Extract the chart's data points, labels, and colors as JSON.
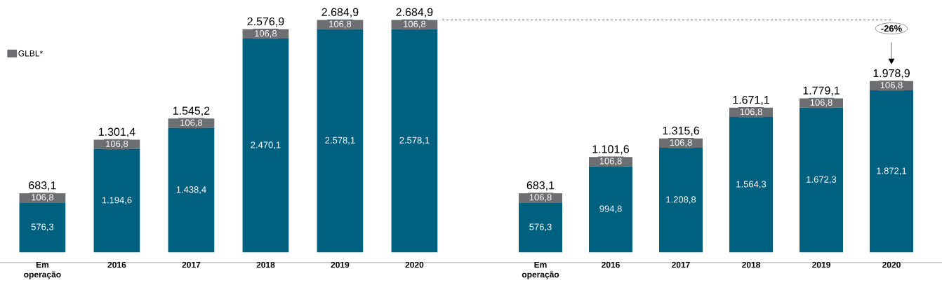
{
  "chart_data": [
    {
      "type": "bar",
      "stacked": true,
      "legend": "top left",
      "categories": [
        "Em operação",
        "2016",
        "2017",
        "2018",
        "2019",
        "2020"
      ],
      "series": [
        {
          "color": "#00607f",
          "values": [
            576.3,
            1194.6,
            1438.4,
            2470.1,
            2578.1,
            2578.1
          ],
          "value_labels": [
            "576,3",
            "1.194,6",
            "1.438,4",
            "2.470,1",
            "2.578,1",
            "2.578,1"
          ]
        },
        {
          "name": "GLBL*",
          "color": "#6d6e71",
          "values": [
            106.8,
            106.8,
            106.8,
            106.8,
            106.8,
            106.8
          ],
          "value_labels": [
            "106,8",
            "106,8",
            "106,8",
            "106,8",
            "106,8",
            "106,8"
          ]
        }
      ],
      "totals": [
        "683,1",
        "1.301,4",
        "1.545,2",
        "2.576,9",
        "2.684,9",
        "2.684,9"
      ]
    },
    {
      "type": "bar",
      "stacked": true,
      "categories": [
        "Em operação",
        "2016",
        "2017",
        "2018",
        "2019",
        "2020"
      ],
      "series": [
        {
          "color": "#00607f",
          "values": [
            576.3,
            994.8,
            1208.8,
            1564.3,
            1672.3,
            1872.1
          ],
          "value_labels": [
            "576,3",
            "994,8",
            "1.208,8",
            "1.564,3",
            "1.672,3",
            "1.872,1"
          ]
        },
        {
          "color": "#6d6e71",
          "values": [
            106.8,
            106.8,
            106.8,
            106.8,
            106.8,
            106.8
          ],
          "value_labels": [
            "106,8",
            "106,8",
            "106,8",
            "106,8",
            "106,8",
            "106,8"
          ]
        }
      ],
      "totals": [
        "683,1",
        "1.101,6",
        "1.315,6",
        "1.671,1",
        "1.779,1",
        "1.978,9"
      ],
      "ref_lines": [
        {
          "axis": "y",
          "value": 2684.9,
          "line_style": "dashed"
        }
      ],
      "annotations": [
        "-26%"
      ]
    }
  ]
}
